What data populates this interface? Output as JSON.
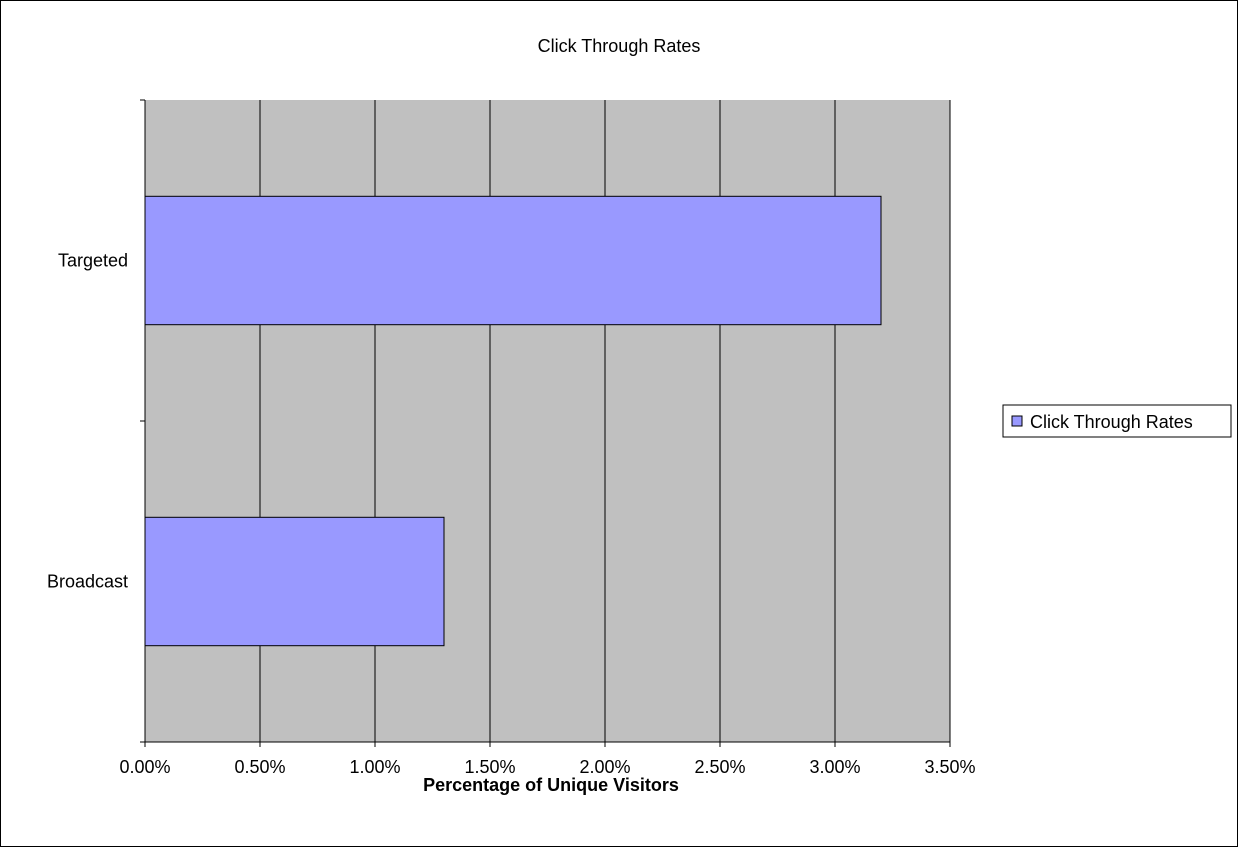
{
  "chart_data": {
    "type": "bar",
    "orientation": "horizontal",
    "title": "Click Through Rates",
    "xlabel": "Percentage of Unique Visitors",
    "ylabel": "",
    "categories": [
      "Targeted",
      "Broadcast"
    ],
    "series": [
      {
        "name": "Click Through Rates",
        "values": [
          0.032,
          0.013
        ]
      }
    ],
    "xlim": [
      0,
      0.035
    ],
    "x_ticks": [
      0,
      0.005,
      0.01,
      0.015,
      0.02,
      0.025,
      0.03,
      0.035
    ],
    "x_tick_labels": [
      "0.00%",
      "0.50%",
      "1.00%",
      "1.50%",
      "2.00%",
      "2.50%",
      "3.00%",
      "3.50%"
    ],
    "grid": "vertical",
    "legend_position": "right",
    "colors": {
      "bar_fill": "#9999ff",
      "bar_stroke": "#000000",
      "plot_background": "#c0c0c0",
      "gridline": "#000000"
    }
  }
}
